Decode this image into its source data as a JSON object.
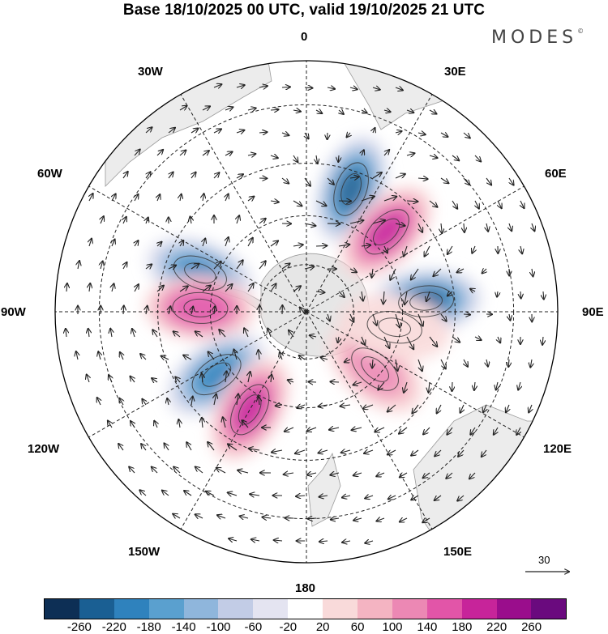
{
  "header": {
    "title": "Base 18/10/2025 00 UTC, valid 19/10/2025 21 UTC",
    "brand": "MODES",
    "brand_mark": "©"
  },
  "map": {
    "projection": "south polar stereographic",
    "longitude_labels": {
      "top": "0",
      "top_right": "30E",
      "upper_right": "60E",
      "right": "90E",
      "lower_right": "120E",
      "bottom_right": "150E",
      "bottom": "180",
      "bottom_left": "150W",
      "lower_left": "120W",
      "left": "90W",
      "upper_left": "60W",
      "top_left": "30W"
    },
    "reference_vector_value": "30",
    "anomaly_centers": [
      {
        "lon": 20,
        "lat": -50,
        "value": -240,
        "sign": "negative"
      },
      {
        "lon": 45,
        "lat": -55,
        "value": 200,
        "sign": "positive"
      },
      {
        "lon": 85,
        "lat": -53,
        "value": -240,
        "sign": "negative"
      },
      {
        "lon": -70,
        "lat": -55,
        "value": -200,
        "sign": "negative"
      },
      {
        "lon": -88,
        "lat": -57,
        "value": 180,
        "sign": "positive"
      },
      {
        "lon": -125,
        "lat": -56,
        "value": -200,
        "sign": "negative"
      },
      {
        "lon": -150,
        "lat": -55,
        "value": 200,
        "sign": "positive"
      },
      {
        "lon": 130,
        "lat": -62,
        "value": 120,
        "sign": "positive"
      },
      {
        "lon": 100,
        "lat": -62,
        "value": 60,
        "sign": "positive"
      }
    ]
  },
  "colorbar": {
    "ticks": [
      "-260",
      "-220",
      "-180",
      "-140",
      "-100",
      "-60",
      "-20",
      "20",
      "60",
      "100",
      "140",
      "180",
      "220",
      "260"
    ],
    "colors": [
      "#0d2f55",
      "#1a5f93",
      "#2f82bd",
      "#5aa0cf",
      "#8fb6dc",
      "#c2cce6",
      "#e4e4f1",
      "#ffffff",
      "#f9dada",
      "#f4b4c2",
      "#ec88b4",
      "#e255a8",
      "#c7249a",
      "#9a0d8c",
      "#6a0a7e"
    ]
  }
}
